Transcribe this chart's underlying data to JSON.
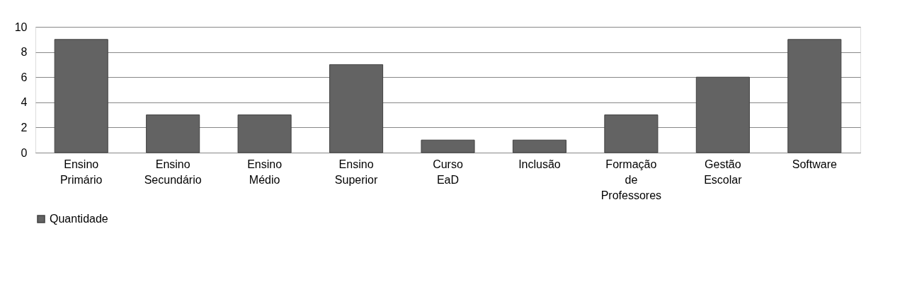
{
  "chart_data": {
    "type": "bar",
    "categories": [
      "Ensino Primário",
      "Ensino Secundário",
      "Ensino Médio",
      "Ensino Superior",
      "Curso EaD",
      "Inclusão",
      "Formação de Professores",
      "Gestão Escolar",
      "Software"
    ],
    "series": [
      {
        "name": "Quantidade",
        "color": "#636363",
        "values": [
          9,
          3,
          3,
          7,
          1,
          1,
          3,
          6,
          9
        ]
      }
    ],
    "ylim": [
      0,
      10
    ],
    "yticks": [
      0,
      2,
      4,
      6,
      8,
      10
    ],
    "grid": "y",
    "legend": "bottom"
  }
}
